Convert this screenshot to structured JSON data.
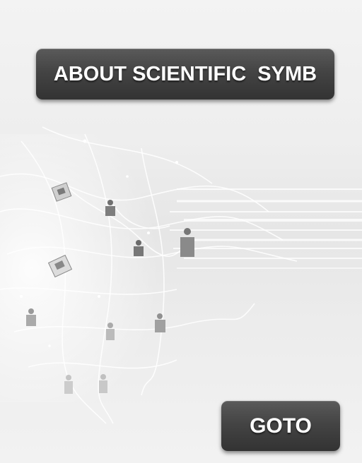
{
  "header": {
    "title": "ABOUT SCIENTIFIC  SYMB"
  },
  "actions": {
    "goto_label": "GOTO"
  },
  "background": {
    "illustration": "network-of-people-illustration"
  },
  "colors": {
    "button_bg": "#444444",
    "button_text": "#ffffff",
    "page_bg": "#eeeeee"
  }
}
